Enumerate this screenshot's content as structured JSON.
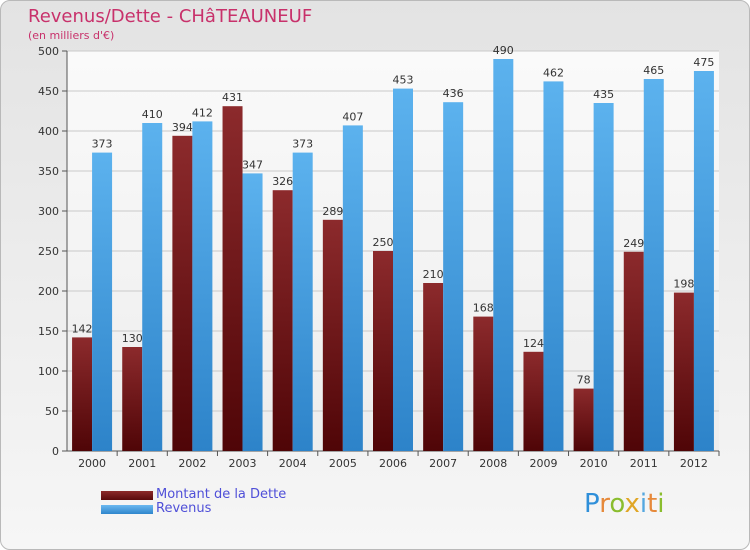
{
  "chart_data": {
    "type": "bar",
    "title": "Revenus/Dette - CHâTEAUNEUF",
    "subtitle": "(en milliers d'€)",
    "categories": [
      "2000",
      "2001",
      "2002",
      "2003",
      "2004",
      "2005",
      "2006",
      "2007",
      "2008",
      "2009",
      "2010",
      "2011",
      "2012"
    ],
    "series": [
      {
        "name": "Montant de la Dette",
        "color": "#6e1315",
        "values": [
          142,
          130,
          394,
          431,
          326,
          289,
          250,
          210,
          168,
          124,
          78,
          249,
          198
        ]
      },
      {
        "name": "Revenus",
        "color": "#4aa3e6",
        "values": [
          373,
          410,
          412,
          347,
          373,
          407,
          453,
          436,
          490,
          462,
          435,
          465,
          475
        ]
      }
    ],
    "ylim": [
      0,
      500
    ],
    "yticks": [
      0,
      50,
      100,
      150,
      200,
      250,
      300,
      350,
      400,
      450,
      500
    ],
    "xlabel": "",
    "ylabel": "",
    "grid": true,
    "legend_position": "bottom-left"
  },
  "logo": {
    "letters": [
      "P",
      "r",
      "o",
      "x",
      "i",
      "t",
      "i"
    ]
  }
}
